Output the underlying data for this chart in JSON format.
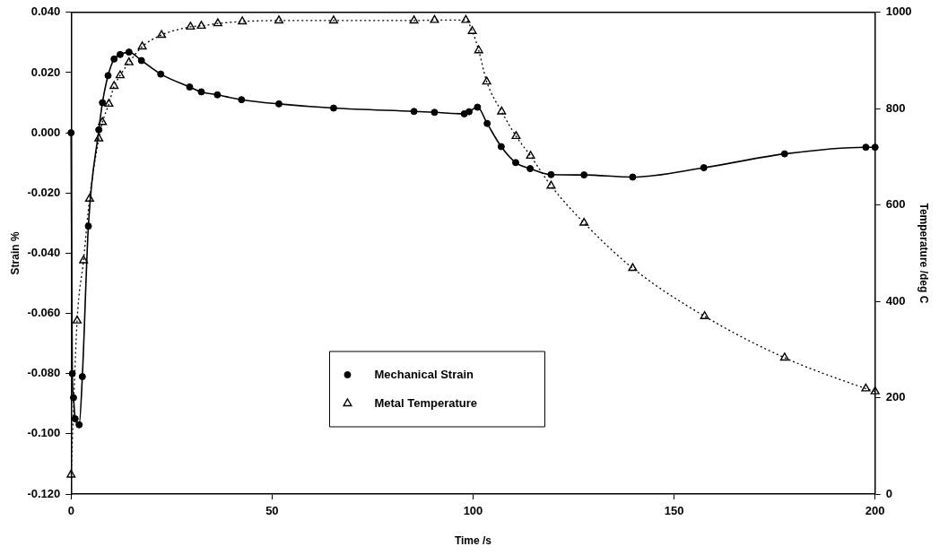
{
  "chart_data": {
    "type": "line",
    "xlabel": "Time /s",
    "ylabel": "Strain %",
    "y2label": "Temperature /deg C",
    "xlim": [
      0,
      200
    ],
    "xticks": [
      0,
      50,
      100,
      150,
      200
    ],
    "ylim": [
      -0.12,
      0.04
    ],
    "yticks": [
      {
        "value": -0.12,
        "label": "-0.120"
      },
      {
        "value": -0.1,
        "label": "-0.100"
      },
      {
        "value": -0.08,
        "label": "-0.080"
      },
      {
        "value": -0.06,
        "label": "-0.060"
      },
      {
        "value": -0.04,
        "label": "-0.040"
      },
      {
        "value": -0.02,
        "label": "-0.020"
      },
      {
        "value": 0,
        "label": "0.000"
      },
      {
        "value": 0.02,
        "label": "0.020"
      },
      {
        "value": 0.04,
        "label": "0.040"
      }
    ],
    "y2lim": [
      0,
      1000
    ],
    "y2ticks": [
      0,
      200,
      400,
      600,
      800,
      1000
    ],
    "grid": false,
    "legend": "bottom",
    "series": [
      {
        "name": "Mechanical Strain",
        "color": "#000000",
        "marker": "circle",
        "line_style": "solid",
        "x": [
          0,
          0.3,
          0.6,
          1,
          2,
          2.8,
          4.3,
          6.9,
          7.8,
          9.2,
          10.7,
          12.2,
          14.4,
          17.5,
          22.3,
          29.5,
          32.4,
          36.4,
          42.4,
          51.7,
          65.3,
          85.3,
          90.4,
          97.8,
          99,
          101.1,
          103.5,
          107,
          110.6,
          114.2,
          119.4,
          127.6,
          139.7,
          157.4,
          177.5,
          197.7,
          200
        ],
        "values": [
          0,
          -0.08,
          -0.088,
          -0.095,
          -0.097,
          -0.081,
          -0.031,
          0.001,
          0.01,
          0.019,
          0.0245,
          0.026,
          0.0268,
          0.024,
          0.0195,
          0.0152,
          0.0136,
          0.0126,
          0.011,
          0.0096,
          0.0082,
          0.0071,
          0.0068,
          0.0063,
          0.007,
          0.0085,
          0.0031,
          -0.0046,
          -0.0099,
          -0.0119,
          -0.0139,
          -0.014,
          -0.0147,
          -0.0116,
          -0.007,
          -0.0048,
          -0.0048
        ]
      },
      {
        "name": "Metal Temperature",
        "color": "#000000",
        "marker": "triangle",
        "line_style": "dotted",
        "axis": "y2",
        "x": [
          0,
          1.5,
          3.1,
          4.6,
          6.9,
          7.8,
          9.4,
          10.7,
          12.2,
          14.4,
          17.7,
          22.5,
          29.7,
          32.4,
          36.5,
          42.6,
          51.7,
          65.3,
          85.3,
          90.4,
          98.2,
          99.8,
          101.4,
          103.4,
          107.1,
          110.7,
          114.3,
          119.4,
          127.6,
          139.7,
          157.6,
          177.5,
          197.7,
          200
        ],
        "values": [
          40,
          360,
          485,
          613,
          738,
          772,
          810,
          847,
          869,
          896,
          929,
          953,
          970,
          972,
          977,
          981,
          983,
          983,
          983,
          984,
          984,
          961,
          921,
          856,
          794,
          743,
          702,
          640,
          563,
          469,
          369,
          283,
          219,
          213
        ]
      }
    ]
  }
}
